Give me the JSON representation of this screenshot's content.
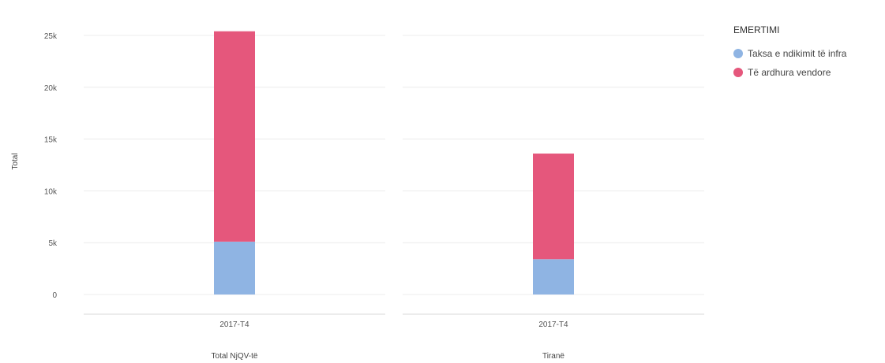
{
  "chart_data": {
    "type": "bar",
    "stacked": true,
    "ylabel": "Total",
    "yticks": [
      "0",
      "5k",
      "10k",
      "15k",
      "20k",
      "25k"
    ],
    "ylim": [
      0,
      25000
    ],
    "grid": true,
    "legend_position": "top-right",
    "legend": {
      "title": "EMERTIMI",
      "items": [
        {
          "label": "Taksa e ndikimit të infra",
          "color": "#8fb4e3"
        },
        {
          "label": "Të ardhura vendore",
          "color": "#e5577c"
        }
      ]
    },
    "panels": [
      {
        "name": "Total NjQV-të",
        "categories": [
          "2017-T4"
        ],
        "series": [
          {
            "name": "Taksa e ndikimit të infra",
            "values": [
              5100
            ]
          },
          {
            "name": "Të ardhura vendore",
            "values": [
              20300
            ]
          }
        ]
      },
      {
        "name": "Tiranë",
        "categories": [
          "2017-T4"
        ],
        "series": [
          {
            "name": "Taksa e ndikimit të infra",
            "values": [
              3400
            ]
          },
          {
            "name": "Të ardhura vendore",
            "values": [
              10200
            ]
          }
        ]
      }
    ]
  }
}
